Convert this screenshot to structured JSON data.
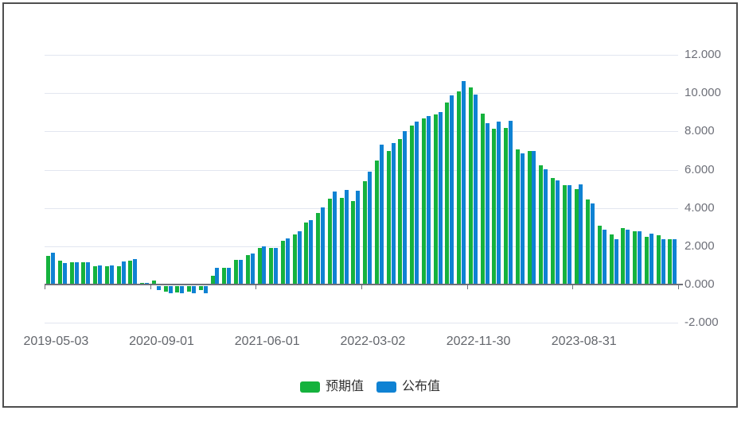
{
  "legend": {
    "items": [
      {
        "label": "预期值",
        "color": "#15b23d"
      },
      {
        "label": "公布值",
        "color": "#0f82d3"
      }
    ]
  },
  "colors": {
    "expected_green": "#15b23d",
    "actual_blue": "#0f82d3",
    "gridline": "#e2e6f0",
    "axis": "#6e7079",
    "y_label_text": "#6e7079",
    "x_label_text": "#63666c",
    "frame_border": "#4e4e4e"
  },
  "chart_data": {
    "type": "bar",
    "title": "",
    "xlabel": "",
    "ylabel": "",
    "ylim": [
      -2,
      12
    ],
    "grid": true,
    "legend_position": "bottom",
    "y_ticks": [
      12,
      10,
      8,
      6,
      4,
      2,
      0,
      -2
    ],
    "y_tick_labels": [
      "12.000",
      "10.000",
      "8.000",
      "6.000",
      "4.000",
      "2.000",
      "0.000",
      "-2.000"
    ],
    "x_tick_labels": [
      "2019-05-03",
      "2020-09-01",
      "2021-06-01",
      "2022-03-02",
      "2022-11-30",
      "2023-08-31"
    ],
    "x_tick_pair_indices": [
      0,
      9,
      18,
      27,
      36,
      45
    ],
    "series": [
      {
        "name": "预期值",
        "color": "#15b23d",
        "values": [
          1.5,
          1.26,
          1.16,
          1.16,
          0.94,
          0.94,
          0.95,
          1.25,
          0.1,
          0.2,
          -0.29,
          -0.33,
          -0.29,
          -0.22,
          0.44,
          0.87,
          1.28,
          1.55,
          1.9,
          1.9,
          2.3,
          2.6,
          3.23,
          3.73,
          4.48,
          4.52,
          4.36,
          5.4,
          6.5,
          7.0,
          7.6,
          8.3,
          8.7,
          8.9,
          9.5,
          10.1,
          10.3,
          8.95,
          8.15,
          8.2,
          7.05,
          7.0,
          6.25,
          5.55,
          5.2,
          5.0,
          4.43,
          3.08,
          2.63,
          2.94,
          2.8,
          2.49,
          2.57,
          2.36
        ]
      },
      {
        "name": "公布值",
        "color": "#0f82d3",
        "values": [
          1.66,
          1.12,
          1.16,
          1.16,
          0.98,
          0.98,
          1.22,
          1.35,
          0.1,
          -0.21,
          -0.39,
          -0.39,
          -0.39,
          -0.39,
          0.89,
          0.87,
          1.28,
          1.62,
          2.0,
          1.9,
          2.4,
          2.8,
          3.37,
          4.05,
          4.86,
          4.96,
          4.9,
          5.9,
          7.3,
          7.4,
          8.0,
          8.5,
          8.8,
          9.0,
          9.9,
          10.65,
          9.95,
          8.45,
          8.5,
          8.55,
          6.86,
          6.97,
          6.03,
          5.45,
          5.2,
          5.25,
          4.25,
          2.85,
          2.36,
          2.88,
          2.8,
          2.67,
          2.36,
          2.36
        ]
      }
    ]
  }
}
